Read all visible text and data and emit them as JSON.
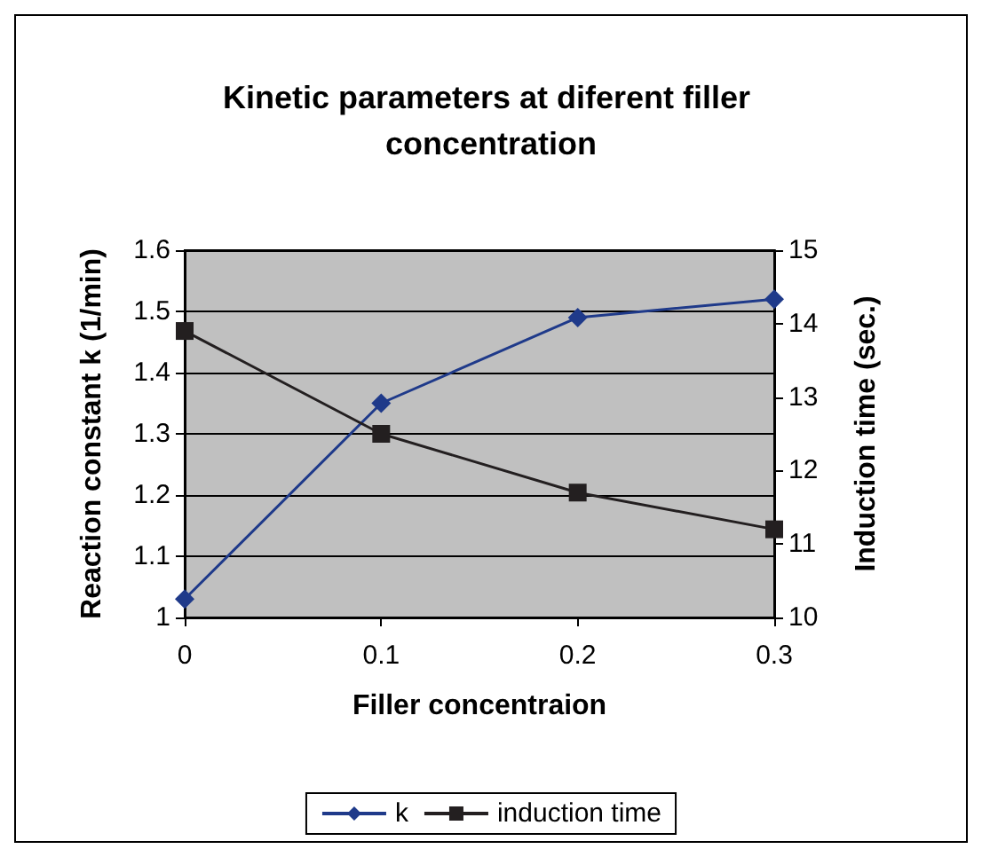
{
  "chart_data": {
    "type": "line",
    "title": "Kinetic parameters at diferent filler concentration",
    "xlabel": "Filler concentraion",
    "ylabel": "Reaction constant k (1/min)",
    "y2label": "Induction time (sec.)",
    "categories": [
      "0",
      "0.1",
      "0.2",
      "0.3"
    ],
    "series": [
      {
        "name": "k",
        "color": "#1f3a8a",
        "marker": "diamond",
        "values": [
          1.03,
          1.35,
          1.49,
          1.52
        ]
      },
      {
        "name": "induction time",
        "color": "#231f20",
        "marker": "square",
        "axis": "y2",
        "values": [
          13.9,
          12.5,
          11.7,
          11.2
        ]
      }
    ],
    "ylim": [
      1,
      1.6
    ],
    "yticks": [
      1,
      1.1,
      1.2,
      1.3,
      1.4,
      1.5,
      1.6
    ],
    "y2lim": [
      10,
      15
    ],
    "y2ticks": [
      10,
      11,
      12,
      13,
      14,
      15
    ],
    "grid": "y",
    "legend": "bottom"
  }
}
